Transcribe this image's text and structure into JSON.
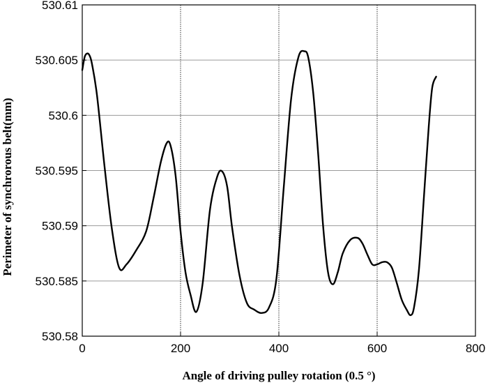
{
  "chart_data": {
    "type": "line",
    "title": "",
    "xlabel": "Angle of driving pulley rotation (0.5 °)",
    "ylabel": "Perimeter of synchrorous belt(mm)",
    "xlim": [
      0,
      800
    ],
    "ylim": [
      530.58,
      530.61
    ],
    "xticks": [
      0,
      200,
      400,
      600,
      800
    ],
    "xtick_labels": [
      "0",
      "200",
      "400",
      "600",
      "800"
    ],
    "yticks": [
      530.58,
      530.585,
      530.59,
      530.595,
      530.6,
      530.605,
      530.61
    ],
    "ytick_labels": [
      "530.58",
      "530.585",
      "530.59",
      "530.595",
      "530.6",
      "530.605",
      "530.61"
    ],
    "grid": true,
    "legend": "none",
    "line_color": "#000000",
    "series": [
      {
        "x": [
          0,
          5,
          10,
          15,
          20,
          30,
          45,
          60,
          75,
          90,
          110,
          130,
          145,
          160,
          172,
          180,
          190,
          200,
          210,
          220,
          232,
          245,
          260,
          275,
          285,
          295,
          305,
          320,
          335,
          350,
          365,
          380,
          395,
          410,
          425,
          440,
          452,
          460,
          470,
          480,
          490,
          500,
          510,
          520,
          530,
          545,
          560,
          570,
          580,
          590,
          600,
          610,
          620,
          630,
          640,
          650,
          660,
          668,
          675,
          685,
          695,
          705,
          712,
          720
        ],
        "y": [
          530.6041,
          530.6053,
          530.6056,
          530.6054,
          530.6046,
          530.6018,
          530.5955,
          530.5898,
          530.5862,
          530.5865,
          530.5878,
          530.5895,
          530.5925,
          530.5958,
          530.5975,
          530.5972,
          530.5945,
          530.5895,
          530.5858,
          530.5838,
          530.5822,
          530.5848,
          530.5915,
          530.5945,
          530.5949,
          530.5935,
          530.5898,
          530.5855,
          530.583,
          530.5824,
          530.5821,
          530.5826,
          530.5852,
          530.5935,
          530.6015,
          530.6053,
          530.6058,
          530.6052,
          530.602,
          530.5965,
          530.59,
          530.5858,
          530.5847,
          530.5858,
          530.5875,
          530.5887,
          530.5889,
          530.5884,
          530.5874,
          530.5865,
          530.5865,
          530.5867,
          530.5867,
          530.5862,
          530.5848,
          530.5833,
          530.5824,
          530.5819,
          530.5826,
          530.586,
          530.5925,
          530.599,
          530.6025,
          530.6035
        ]
      }
    ]
  }
}
